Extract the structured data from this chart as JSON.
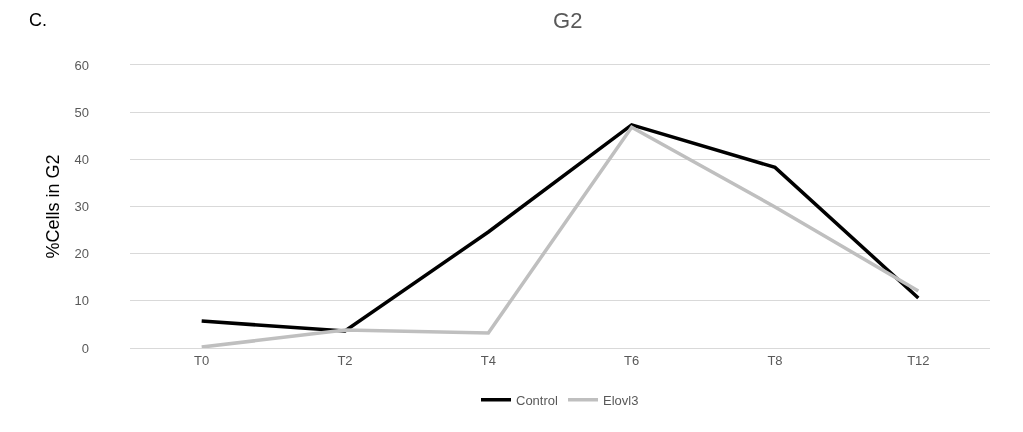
{
  "chart_data": {
    "type": "line",
    "title": "G2",
    "ylabel": "%Cells in G2",
    "annotations": [
      "C."
    ],
    "categories": [
      "T0",
      "T2",
      "T4",
      "T6",
      "T8",
      "T12"
    ],
    "series": [
      {
        "name": "Control",
        "color": "#000000",
        "values": [
          5.7,
          3.6,
          24.6,
          47.3,
          38.3,
          10.6
        ]
      },
      {
        "name": "Elovl3",
        "color": "#bfbfbf",
        "values": [
          0.2,
          3.8,
          3.2,
          46.8,
          29.9,
          12.1
        ]
      }
    ],
    "ylim": [
      0,
      60
    ],
    "yticks": [
      0,
      10,
      20,
      30,
      40,
      50,
      60
    ],
    "grid": "y",
    "legend": "bottom",
    "marker": "none",
    "line_style": "solid"
  }
}
